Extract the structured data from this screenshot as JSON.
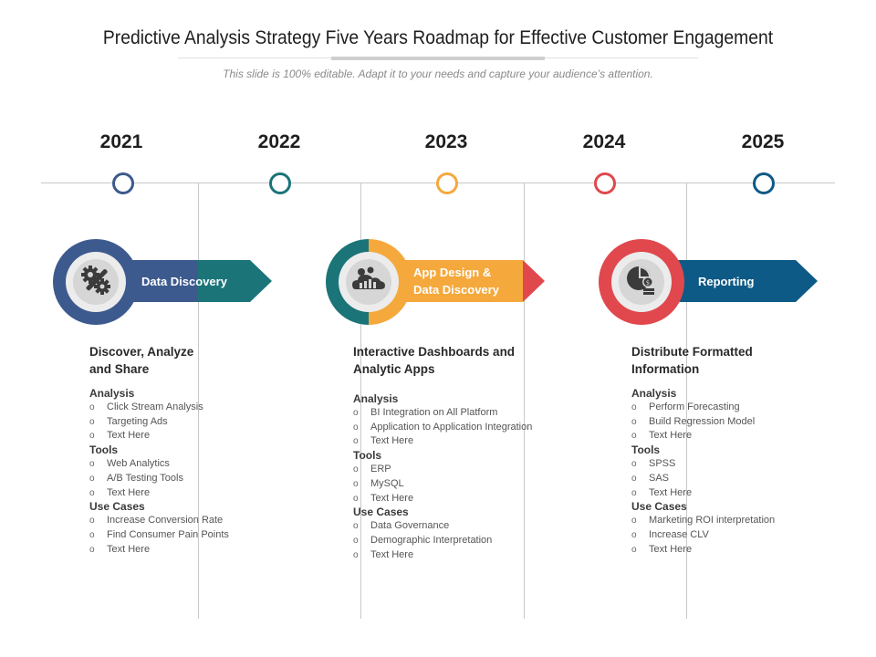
{
  "title": "Predictive Analysis Strategy Five Years Roadmap for Effective Customer Engagement",
  "subtitle": "This slide is 100% editable. Adapt it to your needs and capture your audience’s attention.",
  "colors": {
    "blue": "#3d5a8e",
    "teal": "#1b7478",
    "orange": "#f5a83c",
    "red": "#e0484d",
    "navy": "#0e5a86"
  },
  "years": [
    {
      "label": "2021",
      "color": "#3d5a8e"
    },
    {
      "label": "2022",
      "color": "#1b7478"
    },
    {
      "label": "2023",
      "color": "#f5a83c"
    },
    {
      "label": "2024",
      "color": "#e0484d"
    },
    {
      "label": "2025",
      "color": "#0e5a86"
    }
  ],
  "phases": [
    {
      "banner": "Data Discovery",
      "icon": "gears-wrench-icon",
      "heading": "Discover, Analyze and Share",
      "sections": [
        {
          "name": "Analysis",
          "items": [
            "Click Stream Analysis",
            "Targeting Ads",
            "Text Here"
          ]
        },
        {
          "name": "Tools",
          "items": [
            "Web Analytics",
            "A/B Testing Tools",
            "Text Here"
          ]
        },
        {
          "name": "Use Cases",
          "items": [
            "Increase Conversion Rate",
            "Find Consumer Pain Points",
            "Text Here"
          ]
        }
      ]
    },
    {
      "banner_line1": "App Design &",
      "banner_line2": "Data Discovery",
      "icon": "cloud-analytics-icon",
      "heading": "Interactive Dashboards and Analytic Apps",
      "sections": [
        {
          "name": "Analysis",
          "items": [
            "BI Integration on All Platform",
            "Application to Application  Integration",
            "Text Here"
          ]
        },
        {
          "name": "Tools",
          "items": [
            "ERP",
            "MySQL",
            "Text Here"
          ]
        },
        {
          "name": "Use Cases",
          "items": [
            "Data Governance",
            "Demographic Interpretation",
            "Text Here"
          ]
        }
      ]
    },
    {
      "banner": "Reporting",
      "icon": "pie-chart-money-icon",
      "heading": "Distribute Formatted Information",
      "sections": [
        {
          "name": "Analysis",
          "items": [
            "Perform Forecasting",
            "Build Regression Model",
            "Text Here"
          ]
        },
        {
          "name": "Tools",
          "items": [
            "SPSS",
            "SAS",
            "Text Here"
          ]
        },
        {
          "name": "Use Cases",
          "items": [
            "Marketing ROI interpretation",
            "Increase CLV",
            "Text Here"
          ]
        }
      ]
    }
  ],
  "bullet": "o"
}
